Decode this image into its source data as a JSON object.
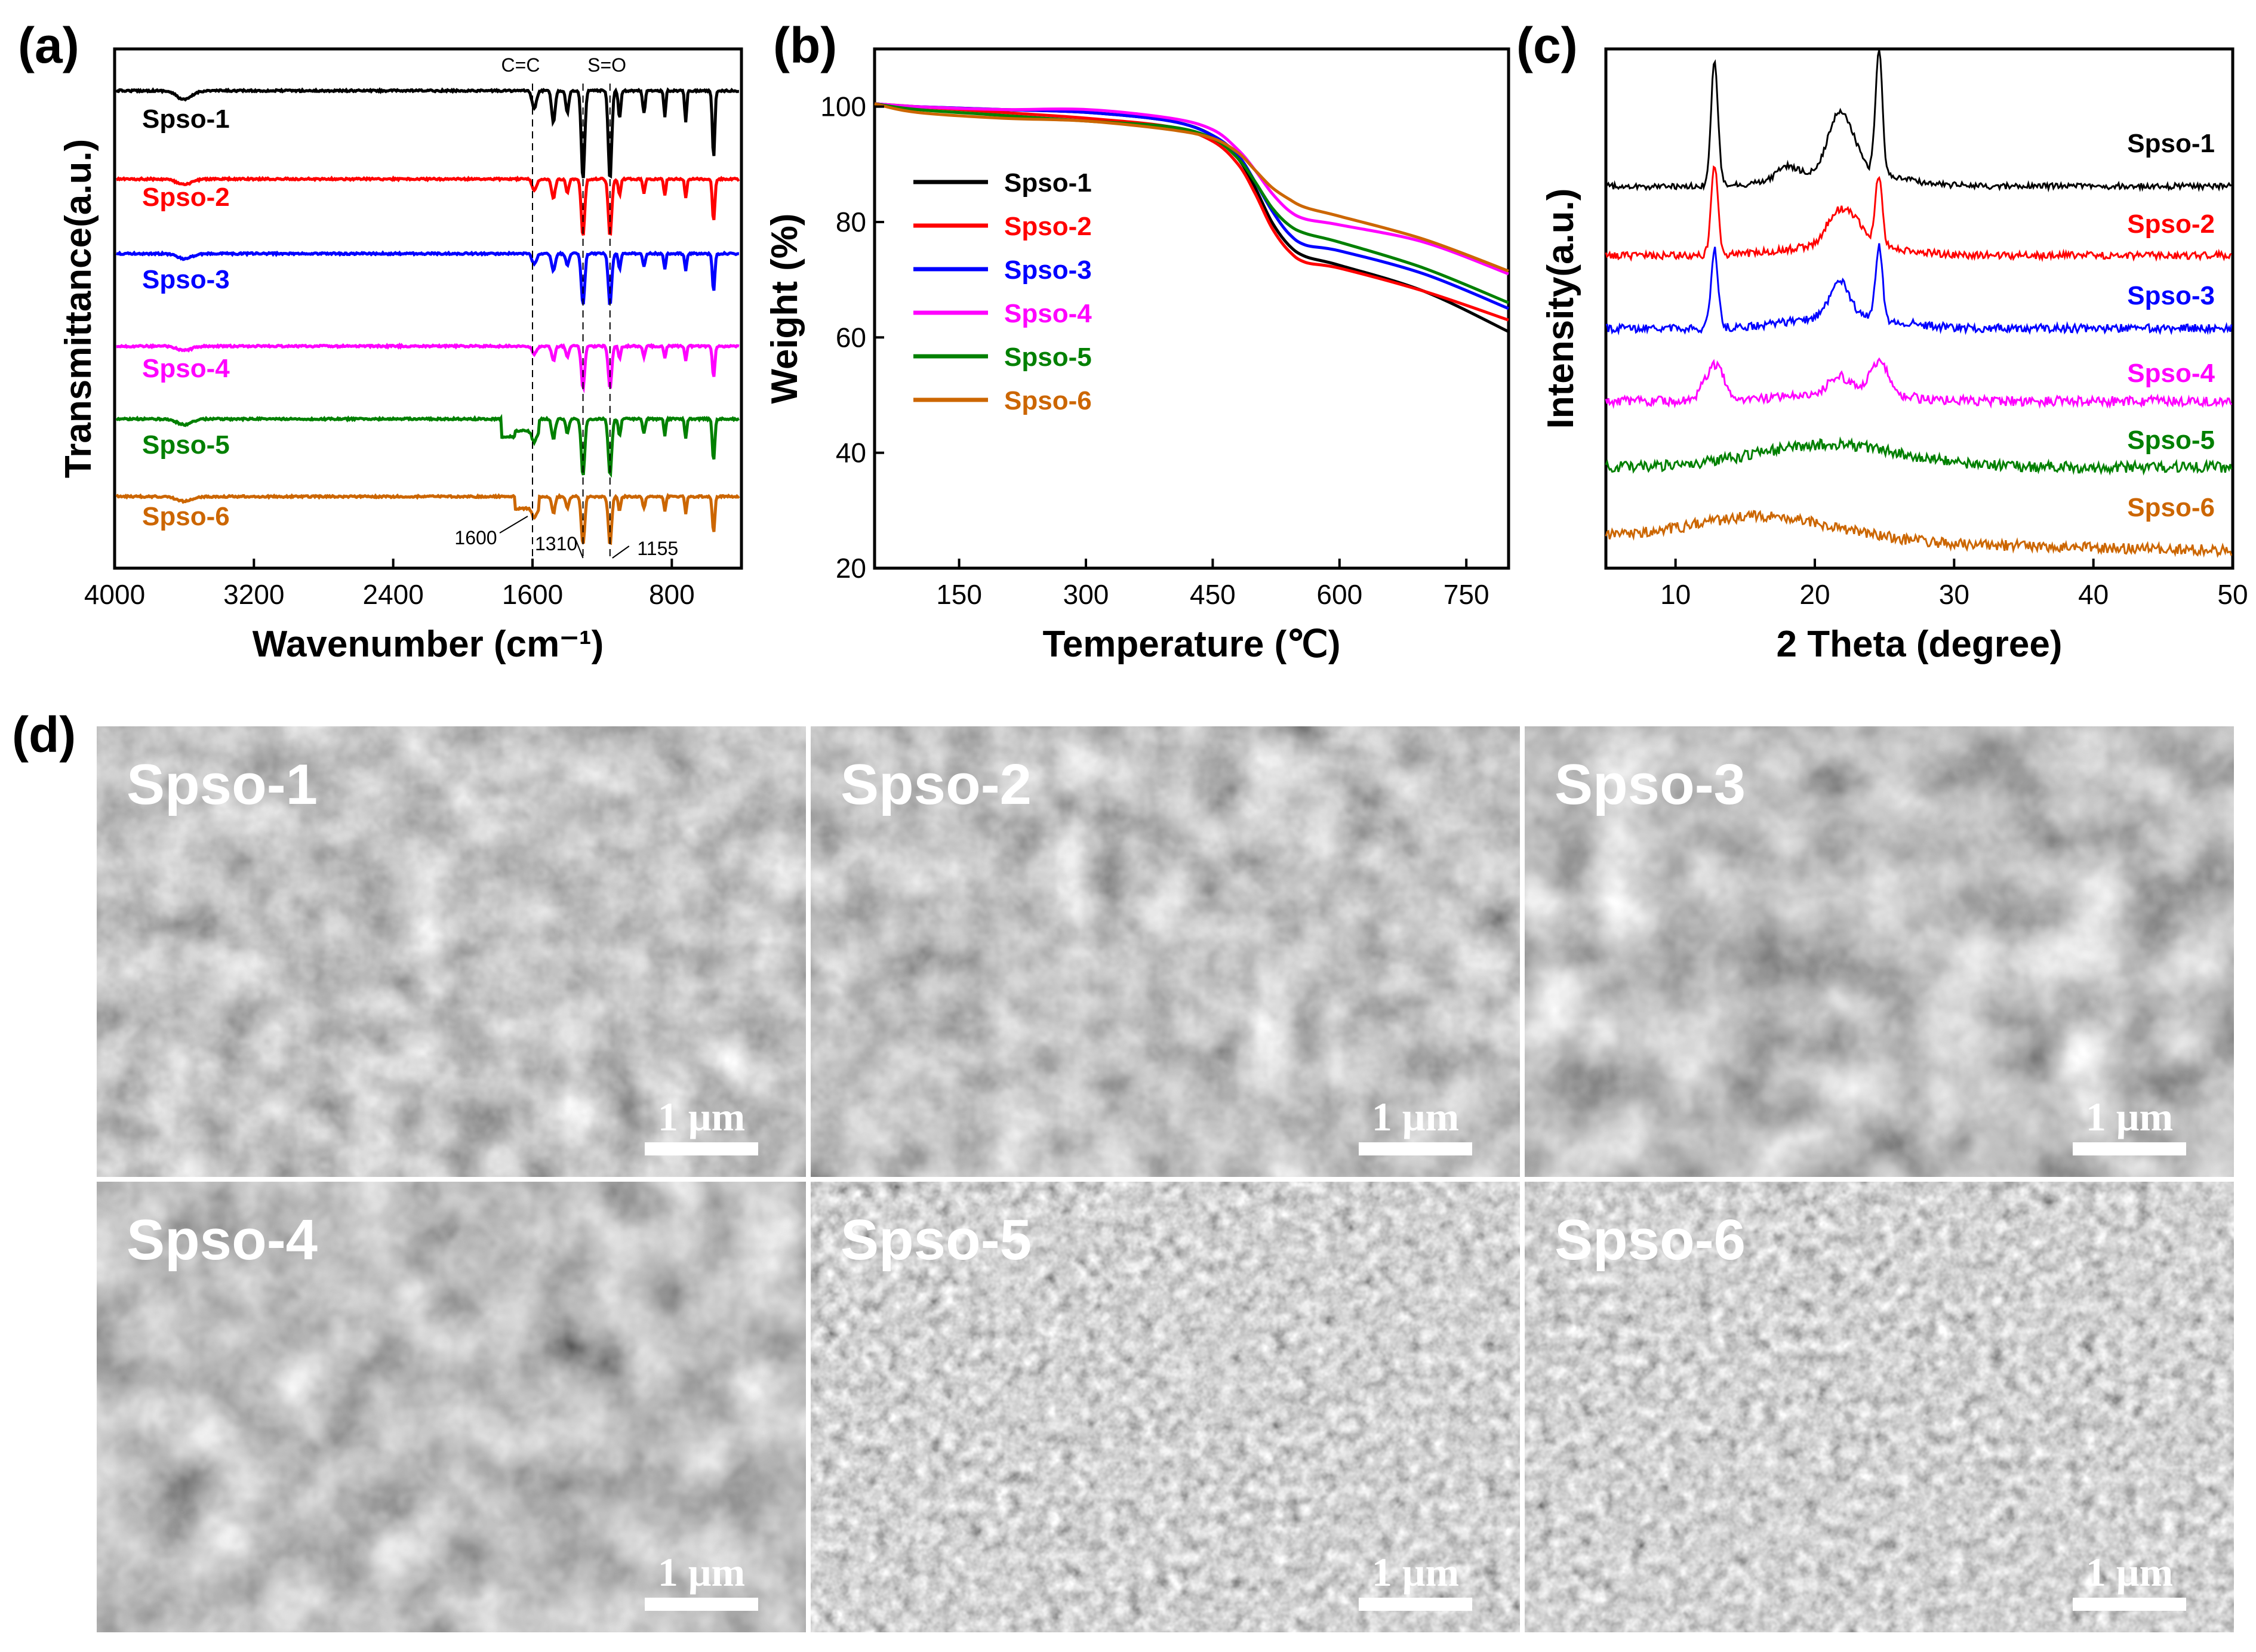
{
  "panels": {
    "a": {
      "letter": "(a)"
    },
    "b": {
      "letter": "(b)"
    },
    "c": {
      "letter": "(c)"
    },
    "d": {
      "letter": "(d)"
    }
  },
  "colors": {
    "Spso-1": "#000000",
    "Spso-2": "#ff0000",
    "Spso-3": "#0000ff",
    "Spso-4": "#ff00ff",
    "Spso-5": "#008000",
    "Spso-6": "#cc6600"
  },
  "chart_data": [
    {
      "id": "a",
      "type": "line",
      "xlabel": "Wavenumber (cm⁻¹)",
      "ylabel": "Transmittance(a.u.)",
      "xlim": [
        4000,
        400
      ],
      "x_reversed": true,
      "xticks": [
        "4000",
        "3200",
        "2400",
        "1600",
        "800"
      ],
      "xtick_values": [
        4000,
        3200,
        2400,
        1600,
        800
      ],
      "y_ticks_hidden": true,
      "series": [
        {
          "name": "Spso-1"
        },
        {
          "name": "Spso-2"
        },
        {
          "name": "Spso-3"
        },
        {
          "name": "Spso-4"
        },
        {
          "name": "Spso-5"
        },
        {
          "name": "Spso-6"
        }
      ],
      "band_labels": [
        {
          "text": "C=C",
          "x": 1600
        },
        {
          "text": "S=O",
          "x": 1310
        }
      ],
      "peak_labels": [
        {
          "text": "1600",
          "x": 1600
        },
        {
          "text": "1310",
          "x": 1310
        },
        {
          "text": "1155",
          "x": 1155
        }
      ],
      "dips": [
        {
          "x": 3600,
          "depth": 0.1,
          "w": 60
        },
        {
          "x": 1590,
          "depth": 0.2,
          "w": 18
        },
        {
          "x": 1480,
          "depth": 0.35,
          "w": 14
        },
        {
          "x": 1400,
          "depth": 0.25,
          "w": 12
        },
        {
          "x": 1310,
          "depth": 1.0,
          "w": 14
        },
        {
          "x": 1155,
          "depth": 1.0,
          "w": 14
        },
        {
          "x": 1100,
          "depth": 0.3,
          "w": 10
        },
        {
          "x": 960,
          "depth": 0.25,
          "w": 10
        },
        {
          "x": 840,
          "depth": 0.3,
          "w": 8
        },
        {
          "x": 720,
          "depth": 0.35,
          "w": 8
        },
        {
          "x": 560,
          "depth": 0.75,
          "w": 10
        }
      ]
    },
    {
      "id": "b",
      "type": "line",
      "xlabel": "Temperature (℃)",
      "ylabel": "Weight (%)",
      "xlim": [
        50,
        800
      ],
      "ylim": [
        20,
        110
      ],
      "xticks": [
        150,
        300,
        450,
        600,
        750
      ],
      "yticks": [
        20,
        40,
        60,
        80,
        100
      ],
      "legend_position": "upper-left",
      "x": [
        50,
        100,
        200,
        300,
        400,
        450,
        480,
        500,
        520,
        540,
        560,
        600,
        700,
        800
      ],
      "series": [
        {
          "name": "Spso-1",
          "values": [
            100.5,
            100,
            99.5,
            99,
            97.5,
            95,
            91,
            86,
            80,
            76,
            74,
            72.5,
            68,
            61
          ]
        },
        {
          "name": "Spso-2",
          "values": [
            100.5,
            100,
            99,
            98,
            96.5,
            94,
            90,
            85,
            79,
            75,
            73,
            72,
            68,
            63
          ]
        },
        {
          "name": "Spso-3",
          "values": [
            100.5,
            100,
            99.5,
            99,
            97.5,
            95,
            91.5,
            87,
            82,
            78,
            76,
            75,
            71,
            65
          ]
        },
        {
          "name": "Spso-4",
          "values": [
            100.5,
            100,
            99.5,
            99.5,
            98,
            96,
            92.5,
            89,
            85,
            82,
            80.5,
            79.5,
            76.5,
            71
          ]
        },
        {
          "name": "Spso-5",
          "values": [
            100.5,
            99.5,
            98.5,
            97.5,
            96.5,
            94.5,
            91,
            87,
            82.5,
            79.5,
            78,
            76.5,
            72,
            66
          ]
        },
        {
          "name": "Spso-6",
          "values": [
            100.5,
            99,
            98,
            97.5,
            96,
            94.5,
            92,
            89,
            86,
            84,
            82.5,
            81,
            77,
            71.5
          ]
        }
      ]
    },
    {
      "id": "c",
      "type": "line",
      "xlabel": "2 Theta (degree)",
      "ylabel": "Intensity(a.u.)",
      "xlim": [
        5,
        50
      ],
      "xticks": [
        10,
        20,
        30,
        40,
        50
      ],
      "y_ticks_hidden": true,
      "series": [
        {
          "name": "Spso-1",
          "peaks": [
            {
              "x": 12.8,
              "h": 1.0
            },
            {
              "x": 21.5,
              "h": 0.35
            },
            {
              "x": 22.5,
              "h": 0.25
            },
            {
              "x": 24.6,
              "h": 1.0
            },
            {
              "x": 18,
              "h": 0.1
            }
          ]
        },
        {
          "name": "Spso-2",
          "peaks": [
            {
              "x": 12.8,
              "h": 0.95
            },
            {
              "x": 21.5,
              "h": 0.3
            },
            {
              "x": 22.8,
              "h": 0.25
            },
            {
              "x": 24.6,
              "h": 0.75
            }
          ]
        },
        {
          "name": "Spso-3",
          "peaks": [
            {
              "x": 12.8,
              "h": 0.8
            },
            {
              "x": 21.8,
              "h": 0.35
            },
            {
              "x": 24.6,
              "h": 0.75
            }
          ]
        },
        {
          "name": "Spso-4",
          "peaks": [
            {
              "x": 12.8,
              "h": 0.45
            },
            {
              "x": 21.8,
              "h": 0.2
            },
            {
              "x": 24.6,
              "h": 0.4
            }
          ]
        },
        {
          "name": "Spso-5",
          "peaks": [
            {
              "x": 21,
              "h": 0.2
            }
          ]
        },
        {
          "name": "Spso-6",
          "peaks": [
            {
              "x": 16,
              "h": 0.25
            }
          ]
        }
      ]
    }
  ],
  "sem": {
    "scale_bar_label": "1 μm",
    "images": [
      {
        "label": "Spso-1",
        "morphology": "flakes"
      },
      {
        "label": "Spso-2",
        "morphology": "flakes"
      },
      {
        "label": "Spso-3",
        "morphology": "sheets"
      },
      {
        "label": "Spso-4",
        "morphology": "sheets"
      },
      {
        "label": "Spso-5",
        "morphology": "particles"
      },
      {
        "label": "Spso-6",
        "morphology": "particles"
      }
    ]
  }
}
